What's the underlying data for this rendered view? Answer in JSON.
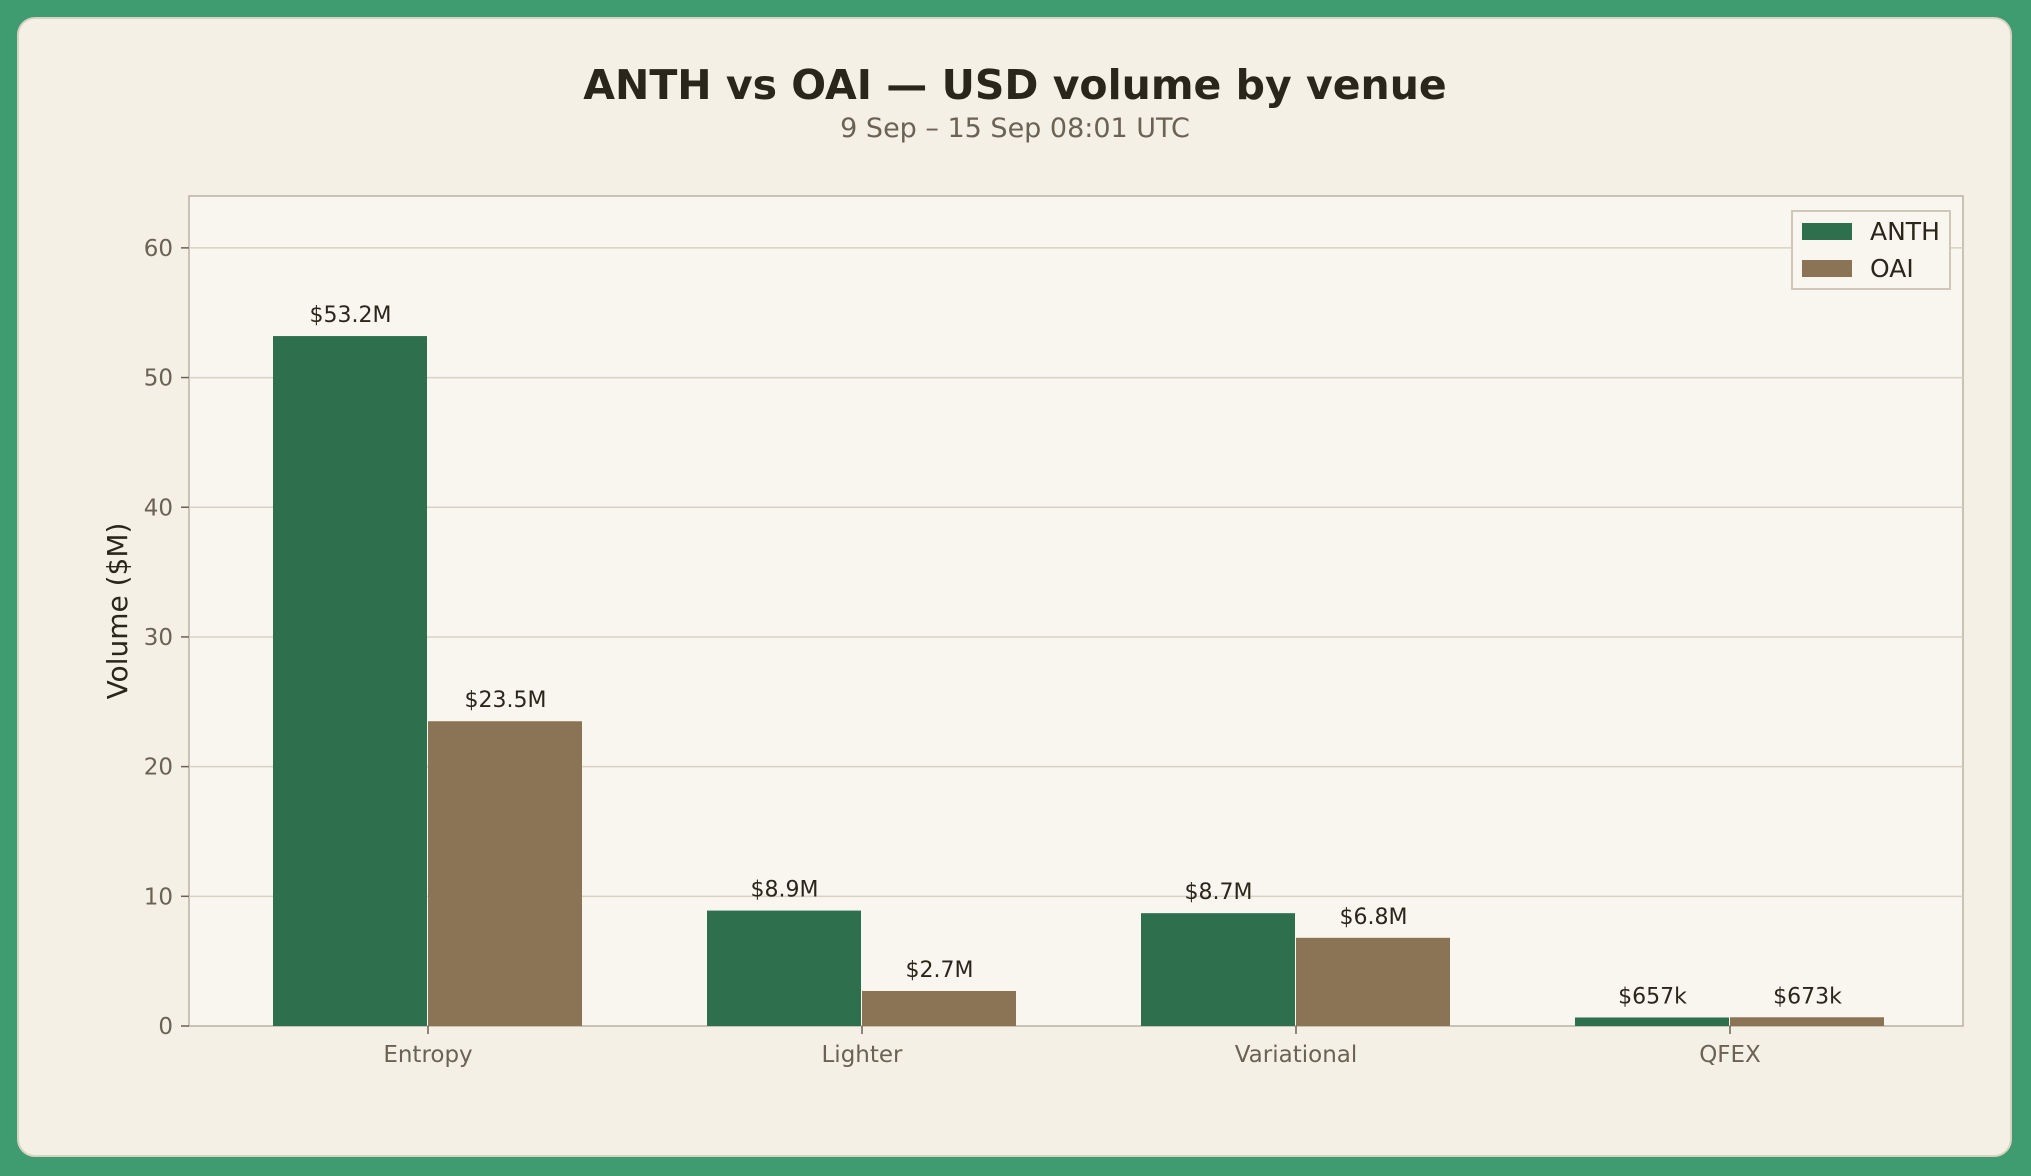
{
  "chart_data": {
    "type": "bar",
    "title": "ANTH vs OAI — USD volume by venue",
    "subtitle": "9 Sep – 15 Sep 08:01 UTC",
    "xlabel": "",
    "ylabel": "Volume ($M)",
    "ylim": [
      0,
      64
    ],
    "yticks": [
      0,
      10,
      20,
      30,
      40,
      50,
      60
    ],
    "grid": true,
    "legend_position": "top-right",
    "categories": [
      "Entropy",
      "Lighter",
      "Variational",
      "QFEX"
    ],
    "series": [
      {
        "name": "ANTH",
        "color": "#2e6f4e",
        "values": [
          53.2,
          8.9,
          8.7,
          0.657
        ],
        "labels": [
          "$53.2M",
          "$8.9M",
          "$8.7M",
          "$657k"
        ]
      },
      {
        "name": "OAI",
        "color": "#8b7355",
        "values": [
          23.5,
          2.7,
          6.8,
          0.673
        ],
        "labels": [
          "$23.5M",
          "$2.7M",
          "$6.8M",
          "$673k"
        ]
      }
    ]
  }
}
